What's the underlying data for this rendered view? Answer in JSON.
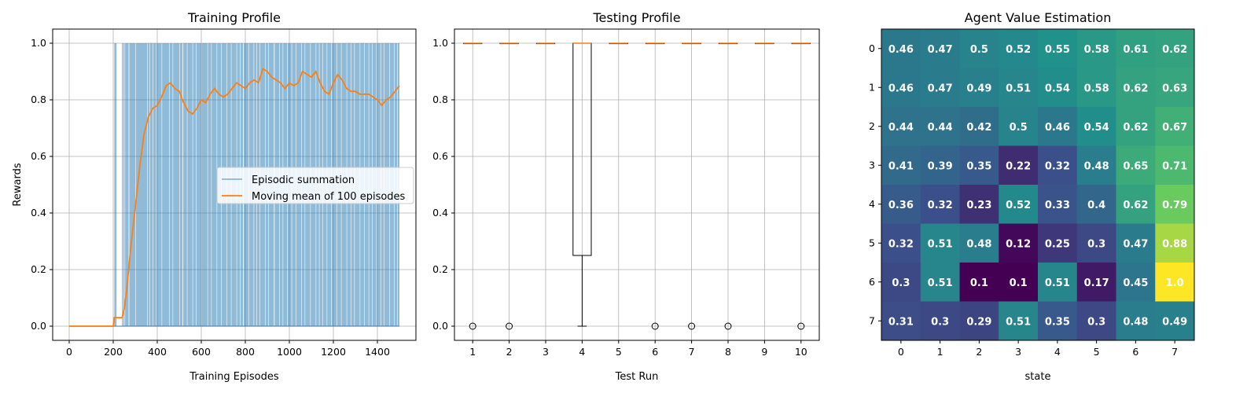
{
  "chart_data": [
    {
      "type": "line",
      "title": "Training Profile",
      "xlabel": "Training Episodes",
      "ylabel": "Rewards",
      "xlim": [
        -75,
        1575
      ],
      "ylim": [
        -0.05,
        1.05
      ],
      "xticks": [
        0,
        200,
        400,
        600,
        800,
        1000,
        1200,
        1400
      ],
      "yticks": [
        0.0,
        0.2,
        0.4,
        0.6,
        0.8,
        1.0
      ],
      "grid": true,
      "legend_position": "center-right",
      "series": [
        {
          "name": "Episodic summation",
          "kind": "binary-episode-rewards",
          "color": "#1f77b4",
          "opacity": 0.5,
          "episodes_total": 1500,
          "success_ranges": [
            [
              205,
              215
            ],
            [
              240,
              1500
            ]
          ],
          "failure_gaps": [
            [
              245,
              247
            ],
            [
              252,
              254
            ],
            [
              270,
              273
            ],
            [
              300,
              302
            ],
            [
              355,
              357
            ],
            [
              365,
              367
            ],
            [
              380,
              382
            ],
            [
              395,
              397
            ],
            [
              420,
              422
            ],
            [
              455,
              457
            ],
            [
              470,
              472
            ],
            [
              500,
              502
            ],
            [
              515,
              518
            ],
            [
              535,
              537
            ],
            [
              560,
              562
            ],
            [
              575,
              577
            ],
            [
              600,
              602
            ],
            [
              628,
              630
            ],
            [
              645,
              647
            ],
            [
              670,
              672
            ],
            [
              690,
              692
            ],
            [
              715,
              717
            ],
            [
              735,
              737
            ],
            [
              760,
              762
            ],
            [
              775,
              777
            ],
            [
              790,
              793
            ],
            [
              815,
              817
            ],
            [
              838,
              840
            ],
            [
              850,
              852
            ],
            [
              865,
              867
            ],
            [
              890,
              892
            ],
            [
              905,
              907
            ],
            [
              930,
              933
            ],
            [
              955,
              957
            ],
            [
              970,
              972
            ],
            [
              990,
              992
            ],
            [
              1010,
              1012
            ],
            [
              1030,
              1032
            ],
            [
              1055,
              1057
            ],
            [
              1070,
              1072
            ],
            [
              1095,
              1097
            ],
            [
              1120,
              1122
            ],
            [
              1135,
              1137
            ],
            [
              1150,
              1152
            ],
            [
              1170,
              1172
            ],
            [
              1190,
              1192
            ],
            [
              1215,
              1217
            ],
            [
              1235,
              1237
            ],
            [
              1260,
              1262
            ],
            [
              1280,
              1282
            ],
            [
              1295,
              1297
            ],
            [
              1320,
              1322
            ],
            [
              1340,
              1342
            ],
            [
              1360,
              1362
            ],
            [
              1375,
              1377
            ],
            [
              1395,
              1397
            ],
            [
              1415,
              1417
            ],
            [
              1430,
              1432
            ],
            [
              1455,
              1457
            ],
            [
              1475,
              1477
            ],
            [
              1490,
              1492
            ]
          ]
        },
        {
          "name": "Moving mean of 100 episodes",
          "color": "#ff7f0e",
          "x": [
            0,
            200,
            205,
            215,
            240,
            250,
            260,
            280,
            300,
            320,
            340,
            360,
            380,
            400,
            420,
            440,
            460,
            480,
            500,
            520,
            540,
            560,
            580,
            600,
            620,
            640,
            660,
            680,
            700,
            720,
            740,
            760,
            780,
            800,
            820,
            840,
            860,
            880,
            900,
            920,
            940,
            960,
            980,
            1000,
            1020,
            1040,
            1060,
            1080,
            1100,
            1120,
            1140,
            1160,
            1180,
            1200,
            1220,
            1240,
            1260,
            1280,
            1300,
            1320,
            1340,
            1360,
            1380,
            1400,
            1420,
            1440,
            1460,
            1480,
            1500
          ],
          "y": [
            0.0,
            0.0,
            0.03,
            0.03,
            0.03,
            0.06,
            0.12,
            0.28,
            0.42,
            0.56,
            0.68,
            0.74,
            0.77,
            0.78,
            0.81,
            0.85,
            0.86,
            0.84,
            0.83,
            0.79,
            0.76,
            0.75,
            0.77,
            0.8,
            0.79,
            0.82,
            0.84,
            0.82,
            0.81,
            0.82,
            0.84,
            0.86,
            0.85,
            0.84,
            0.86,
            0.87,
            0.86,
            0.91,
            0.9,
            0.88,
            0.87,
            0.86,
            0.84,
            0.86,
            0.85,
            0.86,
            0.9,
            0.89,
            0.88,
            0.9,
            0.86,
            0.83,
            0.82,
            0.86,
            0.89,
            0.87,
            0.84,
            0.83,
            0.83,
            0.82,
            0.82,
            0.82,
            0.81,
            0.8,
            0.78,
            0.8,
            0.81,
            0.83,
            0.85
          ]
        }
      ]
    },
    {
      "type": "boxplot",
      "title": "Testing Profile",
      "xlabel": "Test Run",
      "ylabel": "",
      "xlim": [
        0.5,
        10.5
      ],
      "ylim": [
        -0.05,
        1.05
      ],
      "xticks": [
        1,
        2,
        3,
        4,
        5,
        6,
        7,
        8,
        9,
        10
      ],
      "yticks": [
        0.0,
        0.2,
        0.4,
        0.6,
        0.8,
        1.0
      ],
      "grid": true,
      "boxes": [
        {
          "run": 1,
          "min": 1.0,
          "q1": 1.0,
          "median": 1.0,
          "q3": 1.0,
          "max": 1.0,
          "outliers": [
            0.0
          ]
        },
        {
          "run": 2,
          "min": 1.0,
          "q1": 1.0,
          "median": 1.0,
          "q3": 1.0,
          "max": 1.0,
          "outliers": [
            0.0
          ]
        },
        {
          "run": 3,
          "min": 1.0,
          "q1": 1.0,
          "median": 1.0,
          "q3": 1.0,
          "max": 1.0,
          "outliers": []
        },
        {
          "run": 4,
          "min": 0.0,
          "q1": 0.25,
          "median": 1.0,
          "q3": 1.0,
          "max": 1.0,
          "outliers": []
        },
        {
          "run": 5,
          "min": 1.0,
          "q1": 1.0,
          "median": 1.0,
          "q3": 1.0,
          "max": 1.0,
          "outliers": []
        },
        {
          "run": 6,
          "min": 1.0,
          "q1": 1.0,
          "median": 1.0,
          "q3": 1.0,
          "max": 1.0,
          "outliers": [
            0.0
          ]
        },
        {
          "run": 7,
          "min": 1.0,
          "q1": 1.0,
          "median": 1.0,
          "q3": 1.0,
          "max": 1.0,
          "outliers": [
            0.0
          ]
        },
        {
          "run": 8,
          "min": 1.0,
          "q1": 1.0,
          "median": 1.0,
          "q3": 1.0,
          "max": 1.0,
          "outliers": [
            0.0
          ]
        },
        {
          "run": 9,
          "min": 1.0,
          "q1": 1.0,
          "median": 1.0,
          "q3": 1.0,
          "max": 1.0,
          "outliers": []
        },
        {
          "run": 10,
          "min": 1.0,
          "q1": 1.0,
          "median": 1.0,
          "q3": 1.0,
          "max": 1.0,
          "outliers": [
            0.0
          ]
        }
      ],
      "box_color": "#000000",
      "median_color": "#ff7f0e"
    },
    {
      "type": "heatmap",
      "title": "Agent Value Estimation",
      "xlabel": "state",
      "ylabel": "",
      "colormap": "viridis",
      "xticks": [
        0,
        1,
        2,
        3,
        4,
        5,
        6,
        7
      ],
      "yticks": [
        0,
        1,
        2,
        3,
        4,
        5,
        6,
        7
      ],
      "values": [
        [
          0.46,
          0.47,
          0.5,
          0.52,
          0.55,
          0.58,
          0.61,
          0.62
        ],
        [
          0.46,
          0.47,
          0.49,
          0.51,
          0.54,
          0.58,
          0.62,
          0.63
        ],
        [
          0.44,
          0.44,
          0.42,
          0.5,
          0.46,
          0.54,
          0.62,
          0.67
        ],
        [
          0.41,
          0.39,
          0.35,
          0.22,
          0.32,
          0.48,
          0.65,
          0.71
        ],
        [
          0.36,
          0.32,
          0.23,
          0.52,
          0.33,
          0.4,
          0.62,
          0.79
        ],
        [
          0.32,
          0.51,
          0.48,
          0.12,
          0.25,
          0.3,
          0.47,
          0.88
        ],
        [
          0.3,
          0.51,
          0.1,
          0.1,
          0.51,
          0.17,
          0.45,
          1.0
        ],
        [
          0.31,
          0.3,
          0.29,
          0.51,
          0.35,
          0.3,
          0.48,
          0.49
        ]
      ],
      "labels": [
        [
          "0.46",
          "0.47",
          "0.5",
          "0.52",
          "0.55",
          "0.58",
          "0.61",
          "0.62"
        ],
        [
          "0.46",
          "0.47",
          "0.49",
          "0.51",
          "0.54",
          "0.58",
          "0.62",
          "0.63"
        ],
        [
          "0.44",
          "0.44",
          "0.42",
          "0.5",
          "0.46",
          "0.54",
          "0.62",
          "0.67"
        ],
        [
          "0.41",
          "0.39",
          "0.35",
          "0.22",
          "0.32",
          "0.48",
          "0.65",
          "0.71"
        ],
        [
          "0.36",
          "0.32",
          "0.23",
          "0.52",
          "0.33",
          "0.4",
          "0.62",
          "0.79"
        ],
        [
          "0.32",
          "0.51",
          "0.48",
          "0.12",
          "0.25",
          "0.3",
          "0.47",
          "0.88"
        ],
        [
          "0.3",
          "0.51",
          "0.1",
          "0.1",
          "0.51",
          "0.17",
          "0.45",
          "1.0"
        ],
        [
          "0.31",
          "0.3",
          "0.29",
          "0.51",
          "0.35",
          "0.3",
          "0.48",
          "0.49"
        ]
      ]
    }
  ]
}
